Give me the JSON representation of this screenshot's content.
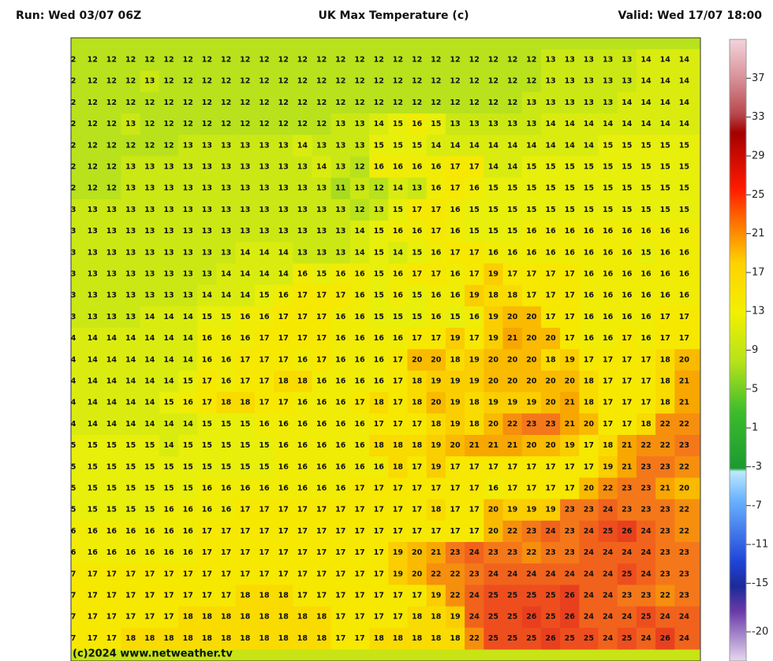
{
  "header": {
    "run": "Run: Wed 03/07 06Z",
    "title": "UK Max Temperature (c)",
    "valid": "Valid: Wed 17/07 18:00"
  },
  "map": {
    "grid": [
      [
        2,
        12,
        12,
        12,
        12,
        12,
        12,
        12,
        12,
        12,
        12,
        12,
        12,
        12,
        12,
        12,
        12,
        12,
        12,
        12,
        12,
        12,
        12,
        12,
        12,
        13,
        13,
        13,
        13,
        13,
        14,
        14,
        14,
        1
      ],
      [
        2,
        12,
        12,
        12,
        13,
        12,
        12,
        12,
        12,
        12,
        12,
        12,
        12,
        12,
        12,
        12,
        12,
        12,
        12,
        12,
        12,
        12,
        12,
        12,
        12,
        13,
        13,
        13,
        13,
        13,
        14,
        14,
        14,
        1
      ],
      [
        2,
        12,
        12,
        12,
        12,
        12,
        12,
        12,
        12,
        12,
        12,
        12,
        12,
        12,
        12,
        12,
        12,
        12,
        12,
        12,
        12,
        12,
        12,
        12,
        13,
        13,
        13,
        13,
        13,
        14,
        14,
        14,
        14,
        1
      ],
      [
        2,
        12,
        12,
        13,
        12,
        12,
        12,
        12,
        12,
        12,
        12,
        12,
        12,
        12,
        13,
        13,
        14,
        15,
        16,
        15,
        13,
        13,
        13,
        13,
        13,
        14,
        14,
        14,
        14,
        14,
        14,
        14,
        14,
        1
      ],
      [
        2,
        12,
        12,
        12,
        12,
        12,
        13,
        13,
        13,
        13,
        13,
        13,
        14,
        13,
        13,
        13,
        15,
        15,
        15,
        14,
        14,
        14,
        14,
        14,
        14,
        14,
        14,
        14,
        15,
        15,
        15,
        15,
        15,
        1
      ],
      [
        2,
        12,
        12,
        13,
        13,
        13,
        13,
        13,
        13,
        13,
        13,
        13,
        13,
        14,
        13,
        12,
        16,
        16,
        16,
        16,
        17,
        17,
        14,
        14,
        15,
        15,
        15,
        15,
        15,
        15,
        15,
        15,
        15,
        1
      ],
      [
        2,
        12,
        12,
        13,
        13,
        13,
        13,
        13,
        13,
        13,
        13,
        13,
        13,
        13,
        11,
        13,
        12,
        14,
        13,
        16,
        17,
        16,
        15,
        15,
        15,
        15,
        15,
        15,
        15,
        15,
        15,
        15,
        15,
        1
      ],
      [
        3,
        13,
        13,
        13,
        13,
        13,
        13,
        13,
        13,
        13,
        13,
        13,
        13,
        13,
        13,
        12,
        13,
        15,
        17,
        17,
        16,
        15,
        15,
        15,
        15,
        15,
        15,
        15,
        15,
        15,
        15,
        15,
        15,
        1
      ],
      [
        3,
        13,
        13,
        13,
        13,
        13,
        13,
        13,
        13,
        13,
        13,
        13,
        13,
        13,
        13,
        14,
        15,
        16,
        16,
        17,
        16,
        15,
        15,
        15,
        16,
        16,
        16,
        16,
        16,
        16,
        16,
        16,
        16,
        1
      ],
      [
        3,
        13,
        13,
        13,
        13,
        13,
        13,
        13,
        13,
        14,
        14,
        14,
        13,
        13,
        13,
        14,
        15,
        14,
        15,
        16,
        17,
        17,
        16,
        16,
        16,
        16,
        16,
        16,
        16,
        16,
        15,
        16,
        16,
        1
      ],
      [
        3,
        13,
        13,
        13,
        13,
        13,
        13,
        13,
        14,
        14,
        14,
        14,
        16,
        15,
        16,
        16,
        15,
        16,
        17,
        17,
        16,
        17,
        19,
        17,
        17,
        17,
        17,
        16,
        16,
        16,
        16,
        16,
        16,
        1
      ],
      [
        3,
        13,
        13,
        13,
        13,
        13,
        13,
        14,
        14,
        14,
        15,
        16,
        17,
        17,
        17,
        16,
        15,
        16,
        15,
        16,
        16,
        19,
        18,
        18,
        17,
        17,
        17,
        16,
        16,
        16,
        16,
        16,
        16,
        1
      ],
      [
        3,
        13,
        13,
        13,
        14,
        14,
        14,
        15,
        15,
        16,
        16,
        17,
        17,
        17,
        16,
        16,
        15,
        15,
        15,
        16,
        15,
        16,
        19,
        20,
        20,
        17,
        17,
        16,
        16,
        16,
        16,
        17,
        17,
        1
      ],
      [
        4,
        14,
        14,
        14,
        14,
        14,
        14,
        16,
        16,
        16,
        17,
        17,
        17,
        17,
        16,
        16,
        16,
        16,
        17,
        17,
        19,
        17,
        19,
        21,
        20,
        20,
        17,
        16,
        16,
        17,
        16,
        17,
        17,
        1
      ],
      [
        4,
        14,
        14,
        14,
        14,
        14,
        14,
        16,
        16,
        17,
        17,
        17,
        16,
        17,
        16,
        16,
        16,
        17,
        20,
        20,
        18,
        19,
        20,
        20,
        20,
        18,
        19,
        17,
        17,
        17,
        17,
        18,
        20,
        2
      ],
      [
        4,
        14,
        14,
        14,
        14,
        14,
        15,
        17,
        16,
        17,
        17,
        18,
        18,
        16,
        16,
        16,
        16,
        17,
        18,
        19,
        19,
        19,
        20,
        20,
        20,
        20,
        20,
        18,
        17,
        17,
        17,
        18,
        21,
        2
      ],
      [
        4,
        14,
        14,
        14,
        14,
        15,
        16,
        17,
        18,
        18,
        17,
        17,
        16,
        16,
        16,
        17,
        18,
        17,
        18,
        20,
        19,
        18,
        19,
        19,
        19,
        20,
        21,
        18,
        17,
        17,
        17,
        18,
        21,
        2
      ],
      [
        4,
        14,
        14,
        14,
        14,
        14,
        14,
        15,
        15,
        15,
        16,
        16,
        16,
        16,
        16,
        16,
        17,
        17,
        17,
        18,
        19,
        18,
        20,
        22,
        23,
        23,
        21,
        20,
        17,
        17,
        18,
        22,
        22,
        2
      ],
      [
        5,
        15,
        15,
        15,
        15,
        14,
        15,
        15,
        15,
        15,
        15,
        16,
        16,
        16,
        16,
        16,
        18,
        18,
        18,
        19,
        20,
        21,
        21,
        21,
        20,
        20,
        19,
        17,
        18,
        21,
        22,
        22,
        23,
        2
      ],
      [
        5,
        15,
        15,
        15,
        15,
        15,
        15,
        15,
        15,
        15,
        15,
        16,
        16,
        16,
        16,
        16,
        16,
        18,
        17,
        19,
        17,
        17,
        17,
        17,
        17,
        17,
        17,
        17,
        19,
        21,
        23,
        23,
        22,
        2
      ],
      [
        5,
        15,
        15,
        15,
        15,
        15,
        15,
        16,
        16,
        16,
        16,
        16,
        16,
        16,
        16,
        17,
        17,
        17,
        17,
        17,
        17,
        17,
        16,
        17,
        17,
        17,
        17,
        20,
        22,
        23,
        23,
        21,
        20,
        1
      ],
      [
        5,
        15,
        15,
        15,
        15,
        16,
        16,
        16,
        16,
        17,
        17,
        17,
        17,
        17,
        17,
        17,
        17,
        17,
        17,
        18,
        17,
        17,
        20,
        19,
        19,
        19,
        23,
        23,
        24,
        23,
        23,
        23,
        22,
        2
      ],
      [
        6,
        16,
        16,
        16,
        16,
        16,
        16,
        17,
        17,
        17,
        17,
        17,
        17,
        17,
        17,
        17,
        17,
        17,
        17,
        17,
        17,
        17,
        20,
        22,
        23,
        24,
        23,
        24,
        25,
        26,
        24,
        23,
        22,
        2
      ],
      [
        6,
        16,
        16,
        16,
        16,
        16,
        16,
        17,
        17,
        17,
        17,
        17,
        17,
        17,
        17,
        17,
        17,
        19,
        20,
        21,
        23,
        24,
        23,
        23,
        22,
        23,
        23,
        24,
        24,
        24,
        24,
        23,
        23,
        2
      ],
      [
        7,
        17,
        17,
        17,
        17,
        17,
        17,
        17,
        17,
        17,
        17,
        17,
        17,
        17,
        17,
        17,
        17,
        19,
        20,
        22,
        22,
        23,
        24,
        24,
        24,
        24,
        24,
        24,
        24,
        25,
        24,
        23,
        23,
        2
      ],
      [
        7,
        17,
        17,
        17,
        17,
        17,
        17,
        17,
        17,
        18,
        18,
        18,
        17,
        17,
        17,
        17,
        17,
        17,
        17,
        19,
        22,
        24,
        25,
        25,
        25,
        25,
        26,
        24,
        24,
        23,
        23,
        22,
        23,
        2
      ],
      [
        7,
        17,
        17,
        17,
        17,
        17,
        18,
        18,
        18,
        18,
        18,
        18,
        18,
        18,
        17,
        17,
        17,
        17,
        18,
        18,
        19,
        24,
        25,
        25,
        26,
        25,
        26,
        24,
        24,
        24,
        25,
        24,
        24,
        2
      ],
      [
        7,
        17,
        17,
        18,
        18,
        18,
        18,
        18,
        18,
        18,
        18,
        18,
        18,
        18,
        17,
        17,
        18,
        18,
        18,
        18,
        18,
        22,
        25,
        25,
        25,
        26,
        25,
        25,
        24,
        25,
        24,
        26,
        24,
        2
      ]
    ],
    "credit": "(c)2024 www.netweather.tv"
  },
  "colorbar": {
    "lim": [
      -23,
      41
    ],
    "ticks": [
      37,
      33,
      29,
      25,
      21,
      17,
      13,
      9,
      5,
      1,
      -3,
      -7,
      -11,
      -15,
      -20
    ]
  }
}
